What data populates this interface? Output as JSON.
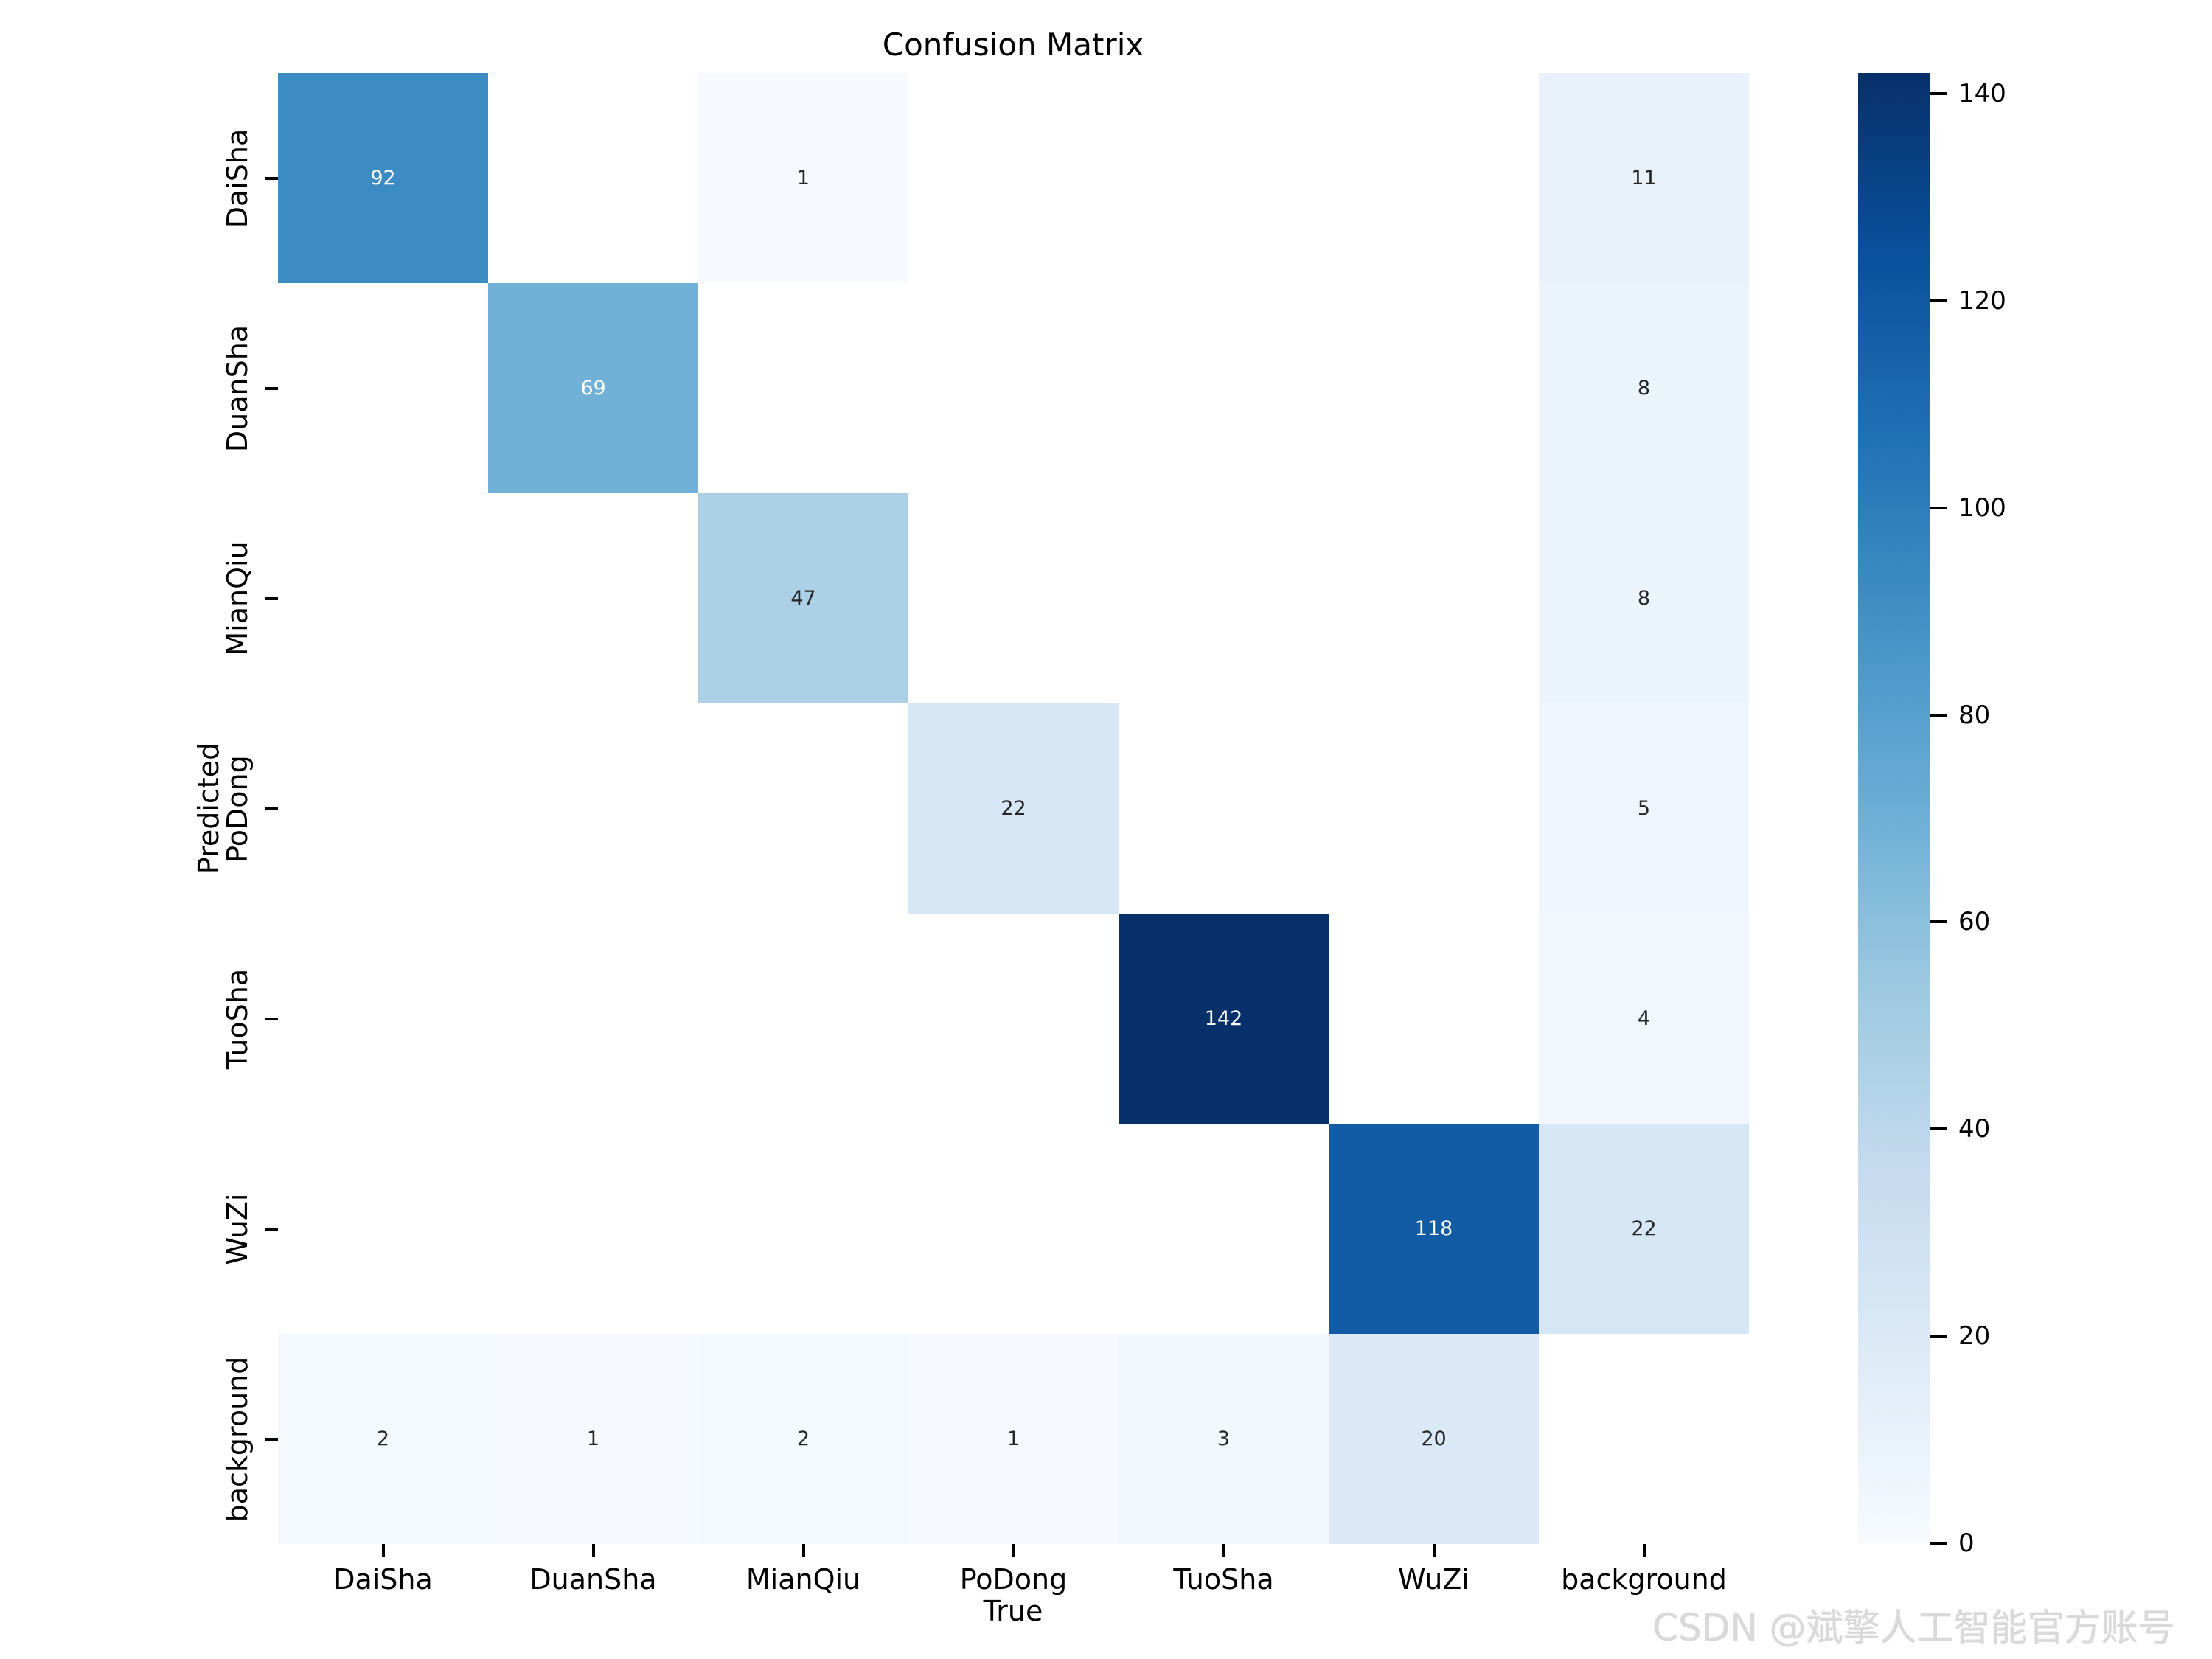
{
  "chart_data": {
    "type": "heatmap",
    "title": "Confusion Matrix",
    "xlabel": "True",
    "ylabel": "Predicted",
    "x_categories": [
      "DaiSha",
      "DuanSha",
      "MianQiu",
      "PoDong",
      "TuoSha",
      "WuZi",
      "background"
    ],
    "y_categories": [
      "DaiSha",
      "DuanSha",
      "MianQiu",
      "PoDong",
      "TuoSha",
      "WuZi",
      "background"
    ],
    "matrix": [
      [
        92,
        null,
        1,
        null,
        null,
        null,
        11
      ],
      [
        null,
        69,
        null,
        null,
        null,
        null,
        8
      ],
      [
        null,
        null,
        47,
        null,
        null,
        null,
        8
      ],
      [
        null,
        null,
        null,
        22,
        null,
        null,
        5
      ],
      [
        null,
        null,
        null,
        null,
        142,
        null,
        4
      ],
      [
        null,
        null,
        null,
        null,
        null,
        118,
        22
      ],
      [
        2,
        1,
        2,
        1,
        3,
        20,
        null
      ]
    ],
    "vmin": 0,
    "vmax": 142,
    "colorbar_ticks": [
      0,
      20,
      40,
      60,
      80,
      100,
      120,
      140
    ],
    "colormap_name": "Blues",
    "colormap_anchors": [
      "#f7fbff",
      "#deebf7",
      "#c6dbef",
      "#9ecae1",
      "#6baed6",
      "#4292c6",
      "#2171b5",
      "#08519c",
      "#08306b"
    ],
    "empty_cell_color": "#ffffff",
    "annotation_dark_color": "#262626",
    "annotation_light_color": "#ffffff",
    "axis_text_color": "#000000",
    "legend_position": "right",
    "grid": false
  },
  "watermark": {
    "text": "CSDN @斌擎人工智能官方账号"
  }
}
